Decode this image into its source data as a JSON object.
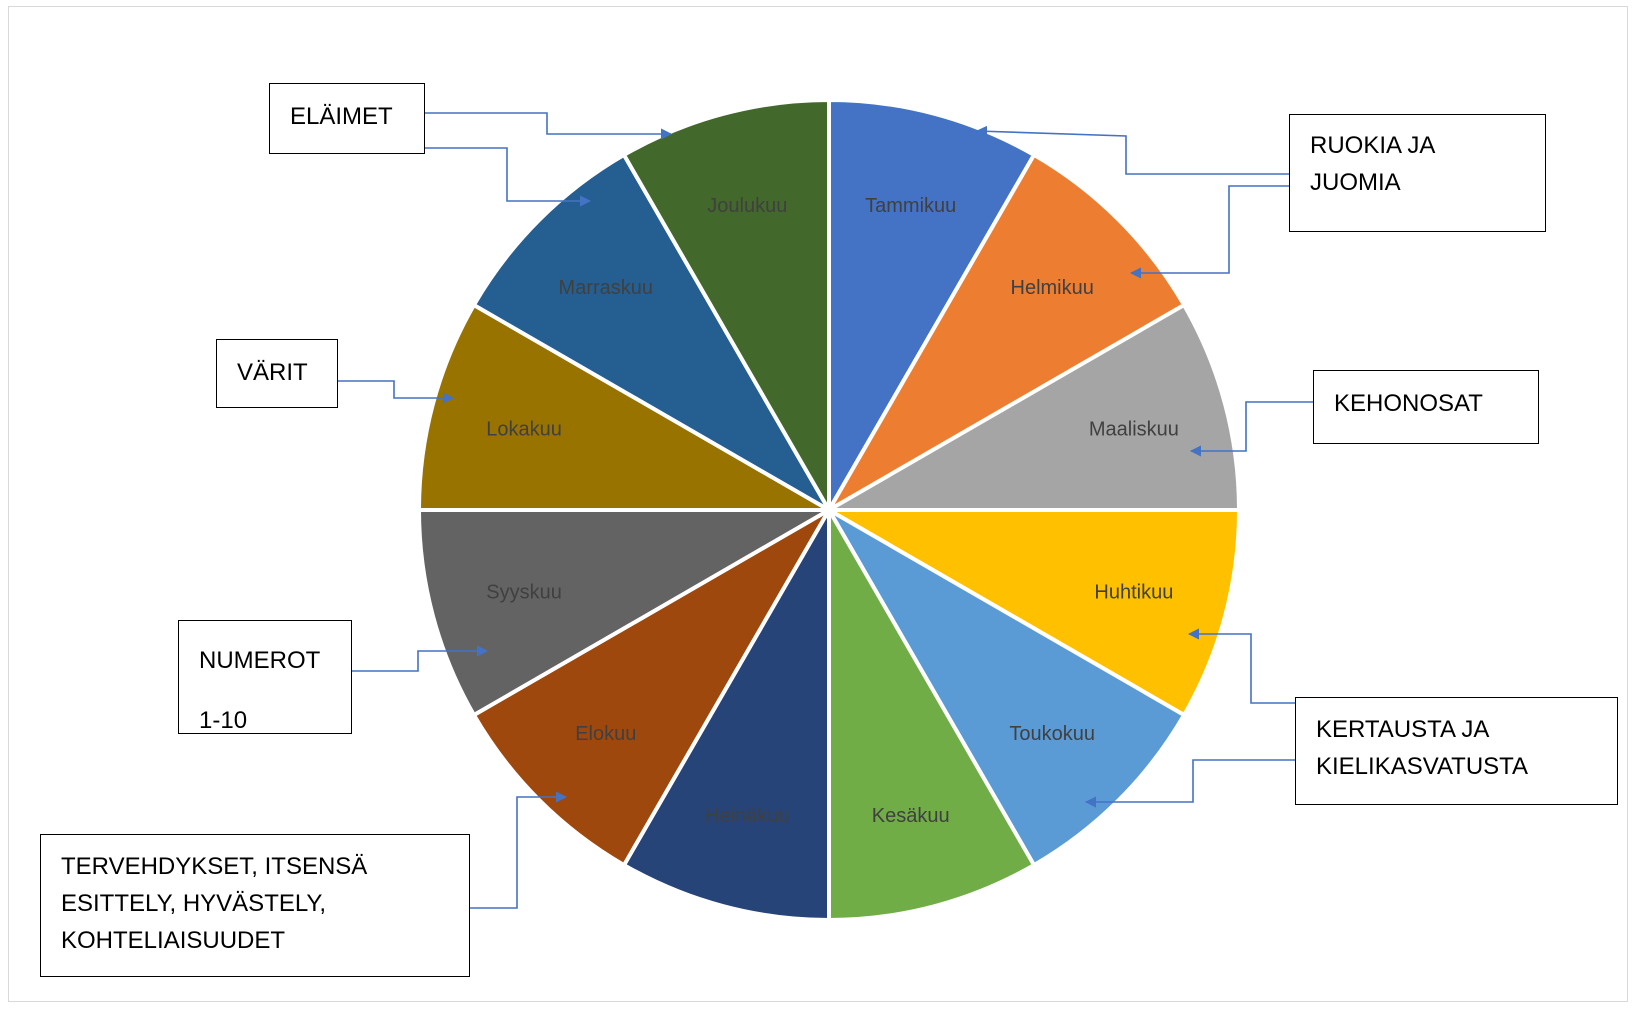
{
  "chart_data": {
    "type": "pie",
    "categories": [
      "Tammikuu",
      "Helmikuu",
      "Maaliskuu",
      "Huhtikuu",
      "Toukokuu",
      "Kesäkuu",
      "Heinäkuu",
      "Elokuu",
      "Syyskuu",
      "Lokakuu",
      "Marraskuu",
      "Joulukuu"
    ],
    "values": [
      1,
      1,
      1,
      1,
      1,
      1,
      1,
      1,
      1,
      1,
      1,
      1
    ],
    "colors": [
      "#4472C4",
      "#ED7D31",
      "#A5A5A5",
      "#FFC000",
      "#5B9BD5",
      "#70AD47",
      "#264478",
      "#9E480E",
      "#636363",
      "#997300",
      "#255E91",
      "#43682B"
    ]
  },
  "callouts": {
    "elaimet": {
      "lines": [
        "ELÄIMET"
      ]
    },
    "ruokia": {
      "lines": [
        "RUOKIA JA",
        "JUOMIA"
      ]
    },
    "varit": {
      "lines": [
        "VÄRIT"
      ]
    },
    "kehonosat": {
      "lines": [
        "KEHONOSAT"
      ]
    },
    "numerot": {
      "lines": [
        "NUMEROT",
        "1-10"
      ]
    },
    "kertausta": {
      "lines": [
        "KERTAUSTA JA",
        "KIELIKASVATUSTA"
      ]
    },
    "tervehdykset": {
      "lines": [
        "TERVEHDYKSET, ITSENSÄ",
        "ESITTELY, HYVÄSTELY,",
        "KOHTELIAISUUDET"
      ]
    }
  },
  "arrow_color": "#4472C4"
}
